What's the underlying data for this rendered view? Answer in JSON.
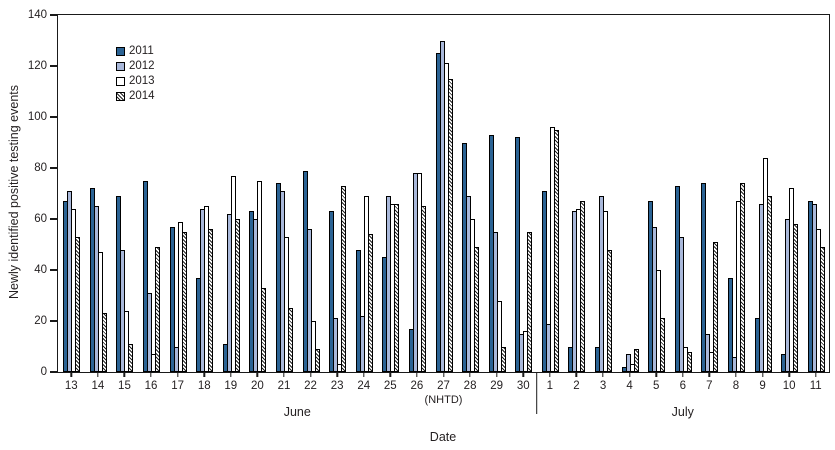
{
  "chart_data": {
    "type": "bar",
    "title": "",
    "ylabel": "Newly identified positive testing events",
    "xlabel": "Date",
    "ylim": [
      0,
      140
    ],
    "yticks": [
      0,
      20,
      40,
      60,
      80,
      100,
      120,
      140
    ],
    "grid": false,
    "legend_position": "upper-left-inside",
    "series_names": [
      "2011",
      "2012",
      "2013",
      "2014"
    ],
    "series_colors": {
      "2011": "#2b6394",
      "2012": "#a9b8da",
      "2013": "#ffffff",
      "2014": "hatched"
    },
    "groups": [
      {
        "label": "13",
        "month": "June",
        "values": [
          67,
          71,
          64,
          53
        ]
      },
      {
        "label": "14",
        "month": "June",
        "values": [
          72,
          65,
          47,
          23
        ]
      },
      {
        "label": "15",
        "month": "June",
        "values": [
          69,
          48,
          24,
          11
        ]
      },
      {
        "label": "16",
        "month": "June",
        "values": [
          75,
          31,
          7,
          49
        ]
      },
      {
        "label": "17",
        "month": "June",
        "values": [
          57,
          10,
          59,
          55
        ]
      },
      {
        "label": "18",
        "month": "June",
        "values": [
          37,
          64,
          65,
          56
        ]
      },
      {
        "label": "19",
        "month": "June",
        "values": [
          11,
          62,
          77,
          60
        ]
      },
      {
        "label": "20",
        "month": "June",
        "values": [
          63,
          60,
          75,
          33
        ]
      },
      {
        "label": "21",
        "month": "June",
        "values": [
          74,
          71,
          53,
          25
        ]
      },
      {
        "label": "22",
        "month": "June",
        "values": [
          79,
          56,
          20,
          9
        ]
      },
      {
        "label": "23",
        "month": "June",
        "values": [
          63,
          21,
          3,
          73
        ]
      },
      {
        "label": "24",
        "month": "June",
        "values": [
          48,
          22,
          69,
          54
        ]
      },
      {
        "label": "25",
        "month": "June",
        "values": [
          45,
          69,
          66,
          66
        ]
      },
      {
        "label": "26",
        "month": "June",
        "values": [
          17,
          78,
          78,
          65
        ]
      },
      {
        "label": "27",
        "sub": "(NHTD)",
        "month": "June",
        "values": [
          125,
          130,
          121,
          115
        ]
      },
      {
        "label": "28",
        "month": "June",
        "values": [
          90,
          69,
          60,
          49
        ]
      },
      {
        "label": "29",
        "month": "June",
        "values": [
          93,
          55,
          28,
          10
        ]
      },
      {
        "label": "30",
        "month": "June",
        "values": [
          92,
          15,
          16,
          55
        ]
      },
      {
        "label": "1",
        "month": "July",
        "values": [
          71,
          19,
          96,
          95
        ]
      },
      {
        "label": "2",
        "month": "July",
        "values": [
          10,
          63,
          64,
          67
        ]
      },
      {
        "label": "3",
        "month": "July",
        "values": [
          10,
          69,
          63,
          48
        ]
      },
      {
        "label": "4",
        "month": "July",
        "values": [
          2,
          7,
          3,
          9
        ]
      },
      {
        "label": "5",
        "month": "July",
        "values": [
          67,
          57,
          40,
          21
        ]
      },
      {
        "label": "6",
        "month": "July",
        "values": [
          73,
          53,
          10,
          8
        ]
      },
      {
        "label": "7",
        "month": "July",
        "values": [
          74,
          15,
          8,
          51
        ]
      },
      {
        "label": "8",
        "month": "July",
        "values": [
          37,
          6,
          67,
          74
        ]
      },
      {
        "label": "9",
        "month": "July",
        "values": [
          21,
          66,
          84,
          69
        ]
      },
      {
        "label": "10",
        "month": "July",
        "values": [
          7,
          60,
          72,
          58
        ]
      },
      {
        "label": "11",
        "month": "July",
        "values": [
          67,
          66,
          56,
          49
        ]
      }
    ]
  }
}
